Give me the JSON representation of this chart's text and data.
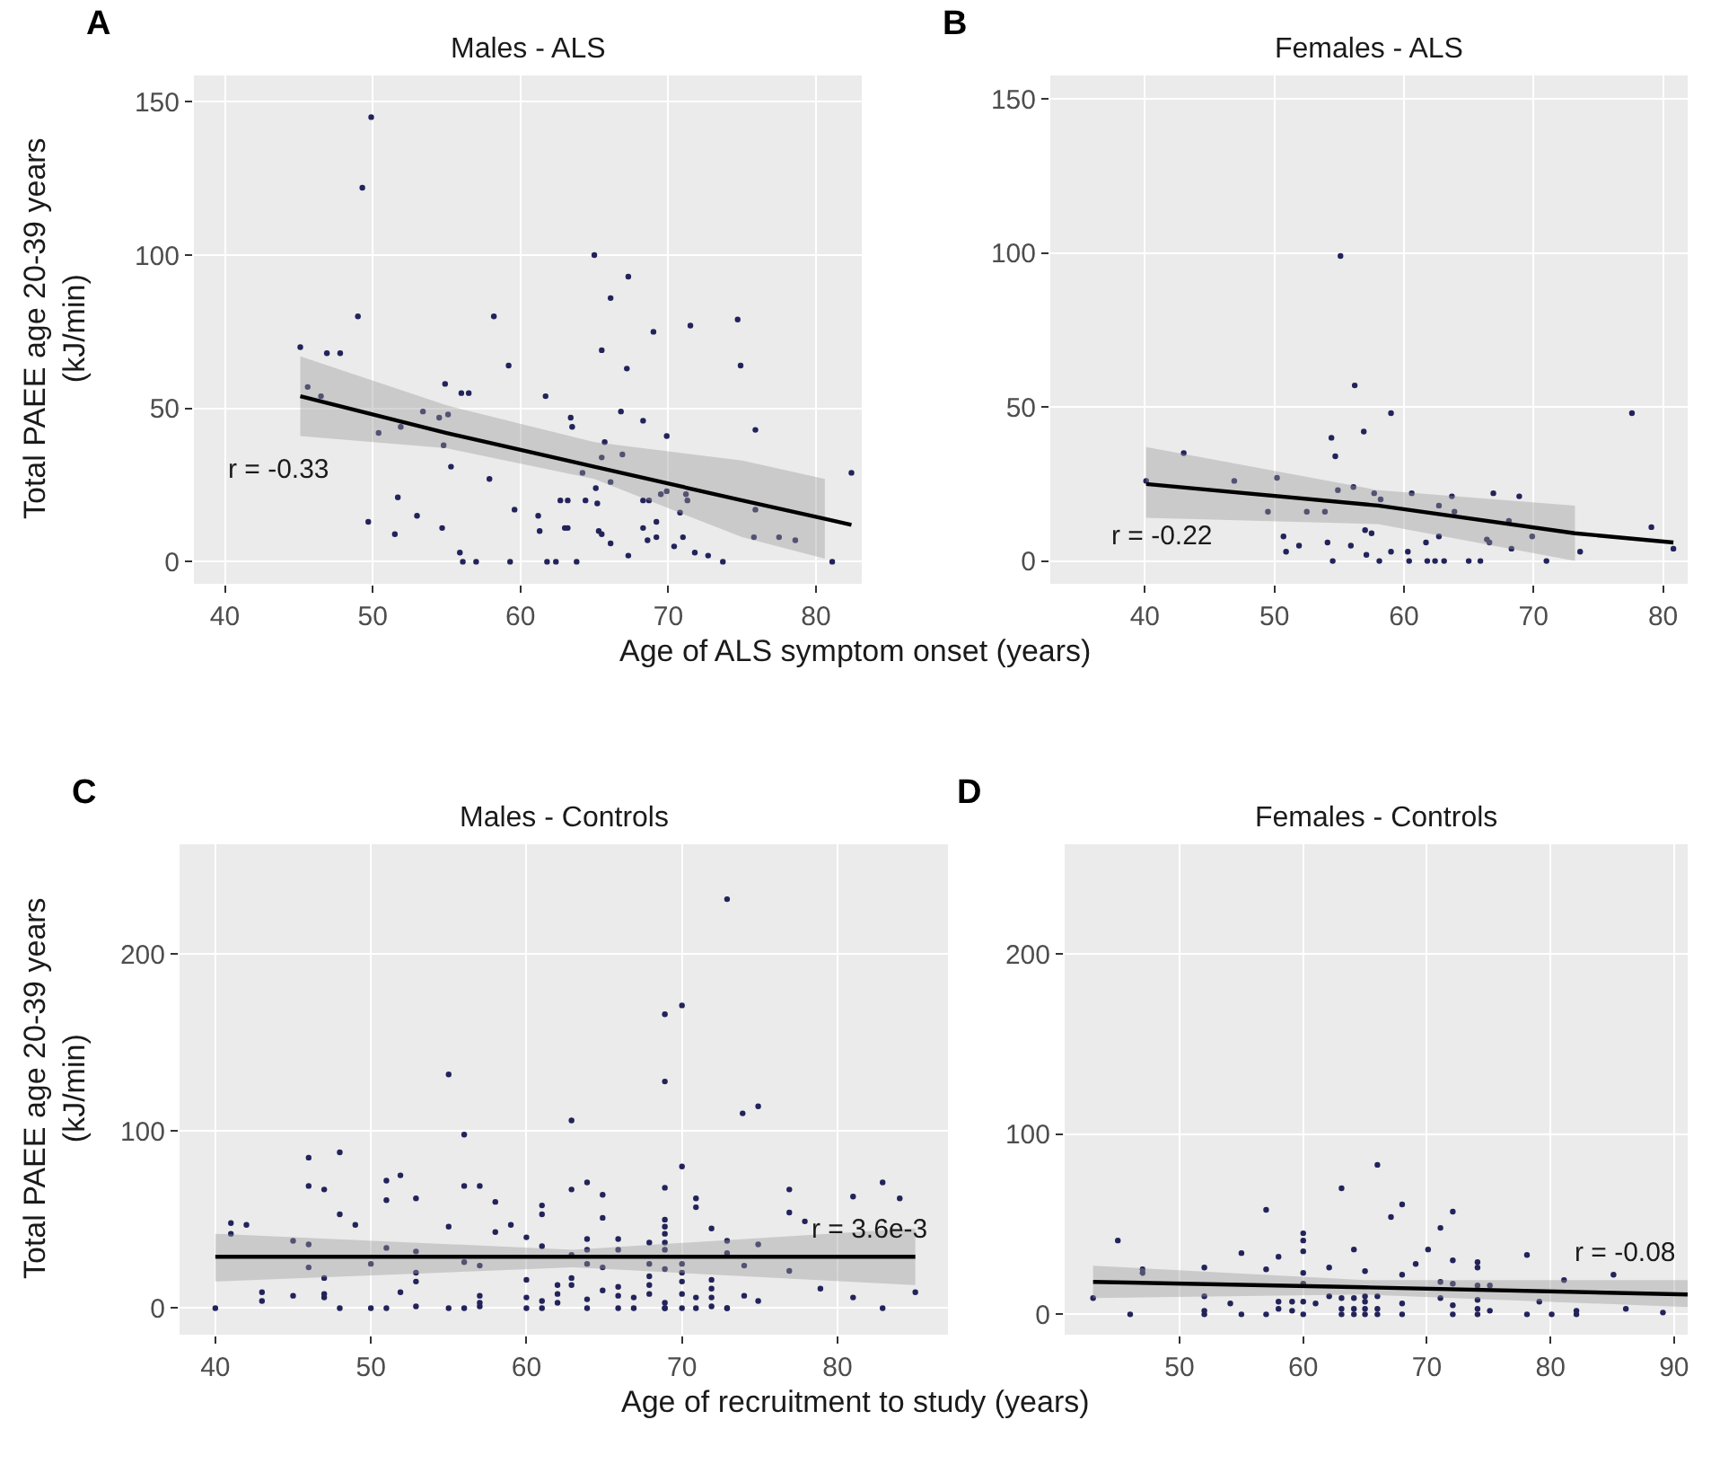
{
  "chart_data": [
    {
      "type": "scatter",
      "title": "Males - ALS",
      "xlabel": "Age of ALS symptom onset (years)",
      "ylabel": "Total PAEE age 20-39 years\n(kJ/min)",
      "xlim": [
        37.9,
        83.1
      ],
      "xticks": [
        40,
        50,
        60,
        70,
        80
      ],
      "ylim": [
        -7.2,
        158.6
      ],
      "yticks": [
        0,
        50,
        100,
        150
      ],
      "grid": true,
      "annotations": [
        "A",
        "r = -0.33"
      ],
      "series": [
        {
          "color": "#23235b",
          "marker": "circle",
          "x": [
            45.1,
            45.6,
            46.5,
            46.9,
            47.8,
            49.0,
            49.3,
            49.9,
            49.7,
            50.4,
            51.5,
            51.7,
            51.9,
            53.0,
            53.4,
            54.5,
            54.7,
            54.8,
            54.9,
            55.1,
            55.3,
            55.9,
            56.0,
            56.1,
            56.5,
            57.0,
            57.9,
            58.2,
            59.2,
            59.3,
            59.6,
            61.2,
            61.3,
            61.7,
            61.8,
            62.4,
            62.7,
            63.0,
            63.2,
            63.2,
            63.4,
            63.5,
            63.8,
            64.2,
            64.4,
            65.0,
            65.1,
            65.2,
            65.3,
            65.5,
            65.5,
            65.5,
            65.7,
            66.1,
            66.1,
            66.1,
            66.8,
            66.9,
            67.2,
            67.3,
            67.3,
            68.3,
            68.3,
            68.3,
            68.6,
            68.7,
            69.0,
            69.2,
            69.2,
            69.5,
            69.9,
            69.9,
            70.4,
            70.8,
            71.0,
            71.2,
            71.3,
            71.5,
            71.8,
            72.7,
            73.7,
            74.7,
            74.9,
            75.8,
            75.9,
            75.9,
            77.5,
            78.6,
            81.1,
            82.4
          ],
          "values": [
            70,
            57,
            54,
            68,
            68,
            80,
            122,
            145,
            13,
            42,
            9,
            21,
            44,
            15,
            49,
            47,
            11,
            38,
            58,
            48,
            31,
            3,
            55,
            0,
            55,
            0,
            27,
            80,
            64,
            0,
            17,
            15,
            10,
            54,
            0,
            0,
            20,
            11,
            11,
            20,
            47,
            44,
            0,
            29,
            20,
            100,
            24,
            19,
            10,
            69,
            9,
            34,
            39,
            86,
            6,
            26,
            49,
            35,
            63,
            93,
            2,
            46,
            20,
            11,
            7,
            20,
            75,
            13,
            8,
            22,
            41,
            23,
            5,
            16,
            8,
            22,
            20,
            77,
            3,
            2,
            0,
            79,
            64,
            8,
            43,
            17,
            8,
            7,
            0,
            29
          ]
        },
        {
          "type": "line",
          "color": "#000000",
          "x": [
            45.1,
            55,
            65,
            75,
            80.6,
            82.4
          ],
          "values": [
            54,
            42,
            31,
            20,
            14,
            12
          ],
          "lower": [
            41,
            37,
            27,
            8,
            1,
            null
          ],
          "upper": [
            67,
            51,
            39,
            33,
            27,
            null
          ]
        }
      ]
    },
    {
      "type": "scatter",
      "title": "Females - ALS",
      "xlim": [
        32.7,
        81.9
      ],
      "xticks": [
        40,
        50,
        60,
        70,
        80
      ],
      "ylim": [
        -7.4,
        157.6
      ],
      "yticks": [
        0,
        50,
        100,
        150
      ],
      "grid": true,
      "annotations": [
        "B",
        "r = -0.22"
      ],
      "series": [
        {
          "color": "#23235b",
          "marker": "circle",
          "x": [
            40.1,
            43.0,
            46.9,
            49.5,
            50.2,
            50.7,
            50.9,
            51.9,
            52.5,
            53.9,
            54.1,
            54.4,
            54.5,
            54.7,
            54.9,
            55.1,
            55.9,
            56.1,
            56.2,
            56.9,
            57.0,
            57.1,
            57.5,
            57.7,
            58.1,
            58.2,
            59.0,
            59.0,
            60.3,
            60.4,
            60.6,
            61.7,
            61.8,
            62.4,
            62.7,
            62.7,
            63.1,
            63.7,
            63.9,
            65.0,
            65.9,
            66.4,
            66.6,
            66.9,
            68.1,
            68.3,
            68.9,
            69.9,
            71.0,
            73.6,
            77.6,
            79.1,
            80.8
          ],
          "values": [
            26,
            35,
            26,
            16,
            27,
            8,
            3,
            5,
            16,
            16,
            6,
            40,
            0,
            34,
            23,
            99,
            5,
            24,
            57,
            42,
            10,
            2,
            9,
            22,
            0,
            20,
            48,
            3,
            3,
            0,
            22,
            6,
            0,
            0,
            8,
            18,
            0,
            21,
            16,
            0,
            0,
            7,
            6,
            22,
            13,
            4,
            21,
            8,
            0,
            3,
            48,
            11,
            4
          ]
        },
        {
          "type": "line",
          "color": "#000000",
          "x": [
            40.1,
            58,
            73.2,
            80.8
          ],
          "values": [
            25,
            18,
            9,
            6
          ],
          "lower": [
            14,
            12,
            0,
            null
          ],
          "upper": [
            37,
            23,
            18,
            null
          ]
        }
      ]
    },
    {
      "type": "scatter",
      "title": "Males - Controls",
      "xlabel": "Age of recruitment to study (years)",
      "ylabel": "Total PAEE age 20-39 years\n(kJ/min)",
      "xlim": [
        37.7,
        87.1
      ],
      "xticks": [
        40,
        50,
        60,
        70,
        80
      ],
      "ylim": [
        -15,
        262
      ],
      "yticks": [
        0,
        100,
        200
      ],
      "grid": true,
      "annotations": [
        "C",
        "r = 3.6e-3"
      ],
      "series": [
        {
          "color": "#23235b",
          "marker": "circle",
          "x": [
            72.9,
            68.9,
            70.0,
            68.9,
            55.0,
            62.9,
            56.0,
            73.9,
            74.9,
            46.0,
            48.0,
            70.0,
            46.0,
            47.0,
            51.0,
            51.9,
            51.0,
            52.9,
            56.0,
            57.0,
            58.0,
            61.0,
            61.0,
            62.9,
            63.9,
            64.9,
            64.9,
            68.9,
            70.9,
            70.9,
            76.9,
            76.9,
            77.9,
            81.0,
            41.0,
            41.0,
            42.0,
            48.0,
            49.0,
            55.0,
            58.0,
            59.0,
            60.0,
            61.0,
            63.9,
            63.9,
            65.9,
            65.9,
            67.9,
            68.9,
            68.9,
            68.9,
            68.9,
            68.9,
            71.9,
            72.9,
            72.9,
            74.9,
            45.0,
            46.0,
            51.0,
            52.9,
            62.9,
            46.0,
            50.0,
            56.0,
            57.0,
            63.9,
            64.9,
            67.9,
            68.9,
            70.0,
            70.0,
            74.0,
            76.9,
            52.9,
            52.9,
            60.0,
            62.9,
            62.9,
            67.9,
            67.9,
            70.0,
            71.9,
            71.9,
            62.0,
            62.0,
            62.0,
            47.0,
            47.0,
            47.0,
            43.0,
            43.0,
            45.0,
            51.9,
            57.0,
            57.0,
            57.0,
            60.0,
            61.0,
            61.0,
            63.9,
            64.9,
            65.9,
            65.9,
            66.9,
            67.9,
            68.9,
            68.9,
            70.0,
            70.9,
            71.9,
            71.9,
            72.9,
            74.0,
            74.9,
            78.9,
            81.0,
            40.0,
            48.0,
            50.0,
            51.0,
            52.9,
            55.0,
            56.0,
            60.0,
            63.9,
            65.9,
            66.9,
            68.9,
            70.0,
            72.9,
            70.9,
            82.9,
            84.0,
            85.0,
            82.9
          ],
          "values": [
            231,
            166,
            171,
            128,
            132,
            106,
            98,
            110,
            114,
            85,
            88,
            80,
            69,
            67,
            72,
            75,
            61,
            62,
            69,
            69,
            60,
            58,
            53,
            67,
            71,
            64,
            51,
            68,
            62,
            57,
            67,
            54,
            49,
            63,
            48,
            42,
            47,
            53,
            47,
            46,
            43,
            47,
            40,
            35,
            39,
            33,
            39,
            33,
            37,
            50,
            46,
            42,
            37,
            33,
            45,
            38,
            31,
            36,
            38,
            36,
            34,
            32,
            30,
            23,
            25,
            26,
            24,
            25,
            23,
            25,
            22,
            25,
            20,
            24,
            21,
            20,
            15,
            16,
            17,
            13,
            18,
            13,
            15,
            16,
            11,
            13,
            8,
            3,
            17,
            8,
            6,
            9,
            4,
            7,
            9,
            7,
            3,
            1,
            6,
            4,
            0,
            5,
            10,
            12,
            7,
            6,
            8,
            3,
            0,
            8,
            6,
            6,
            1,
            0,
            7,
            4,
            11,
            6,
            0,
            0,
            0,
            0,
            1,
            0,
            0,
            0,
            0,
            0,
            0,
            0,
            0,
            0,
            0,
            71,
            62,
            9,
            0
          ]
        },
        {
          "type": "line",
          "color": "#000000",
          "x": [
            40,
            63,
            85
          ],
          "values": [
            29,
            29,
            29
          ],
          "lower": [
            15,
            23,
            13
          ],
          "upper": [
            42,
            33,
            45
          ]
        }
      ]
    },
    {
      "type": "scatter",
      "title": "Females - Controls",
      "xlim": [
        40.7,
        91.1
      ],
      "xticks": [
        50,
        60,
        70,
        80,
        90
      ],
      "ylim": [
        -11.3,
        261
      ],
      "yticks": [
        0,
        100,
        200
      ],
      "grid": true,
      "annotations": [
        "D",
        "r = -0.08"
      ],
      "series": [
        {
          "color": "#23235b",
          "marker": "circle",
          "x": [
            43.0,
            45.0,
            46.0,
            47.0,
            47.0,
            52.0,
            52.0,
            52.0,
            52.0,
            54.1,
            55.0,
            55.0,
            57.0,
            57.0,
            57.0,
            58.0,
            58.0,
            58.0,
            59.1,
            59.1,
            60.0,
            60.0,
            60.0,
            60.0,
            60.0,
            60.0,
            60.0,
            61.0,
            62.1,
            62.1,
            63.1,
            63.1,
            63.1,
            63.1,
            64.1,
            64.1,
            64.1,
            64.1,
            65.0,
            65.0,
            65.0,
            65.0,
            65.0,
            66.0,
            66.0,
            66.0,
            66.0,
            67.1,
            68.0,
            68.0,
            68.0,
            68.0,
            69.1,
            70.1,
            71.1,
            71.1,
            71.1,
            72.1,
            72.1,
            72.1,
            72.1,
            72.1,
            74.1,
            74.1,
            74.1,
            74.1,
            74.1,
            74.1,
            75.1,
            75.1,
            78.1,
            78.1,
            79.1,
            80.1,
            81.1,
            82.1,
            82.1,
            85.1,
            86.1,
            89.1
          ],
          "values": [
            9,
            41,
            0,
            25,
            23,
            26,
            10,
            2,
            0,
            6,
            34,
            0,
            58,
            25,
            0,
            32,
            7,
            3,
            7,
            2,
            45,
            41,
            35,
            23,
            17,
            7,
            0,
            6,
            26,
            10,
            70,
            9,
            3,
            0,
            36,
            9,
            3,
            0,
            24,
            10,
            7,
            3,
            0,
            83,
            10,
            3,
            0,
            54,
            61,
            22,
            6,
            0,
            28,
            36,
            48,
            18,
            9,
            57,
            30,
            17,
            5,
            0,
            29,
            26,
            16,
            8,
            3,
            0,
            16,
            2,
            33,
            0,
            7,
            0,
            19,
            2,
            0,
            22,
            3,
            1
          ]
        },
        {
          "type": "line",
          "color": "#000000",
          "x": [
            43,
            65,
            91.1
          ],
          "values": [
            18,
            15,
            11
          ],
          "lower": [
            9,
            11,
            4
          ],
          "upper": [
            27,
            19,
            19
          ]
        }
      ]
    }
  ]
}
